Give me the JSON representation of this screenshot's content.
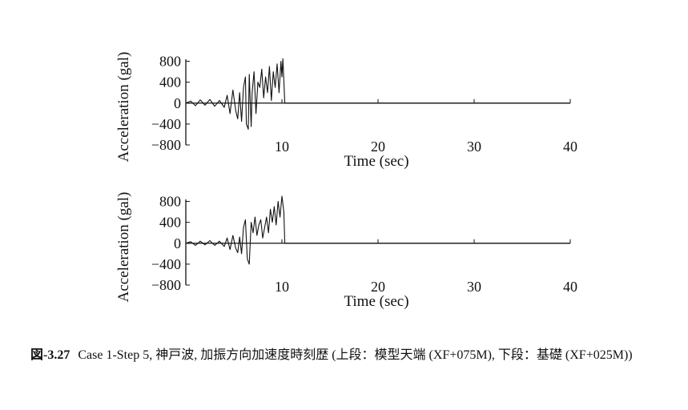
{
  "caption": {
    "figure_number": "図-3.27",
    "text": "Case 1-Step 5, 神戸波, 加振方向加速度時刻歴 (上段：模型天端 (XF+075M), 下段：基礎 (XF+025M))"
  },
  "chart_data": [
    {
      "type": "line",
      "xlabel": "Time (sec)",
      "ylabel": "Acceleration (gal)",
      "xlim": [
        0,
        40
      ],
      "ylim": [
        -800,
        900
      ],
      "xticks": [
        10,
        20,
        30,
        40
      ],
      "yticks": [
        800,
        400,
        0,
        -400,
        -800
      ],
      "ytick_labels": [
        "800",
        "400",
        "0",
        "−400",
        "−800"
      ],
      "grid": false,
      "series": [
        {
          "x": [
            0,
            0.5,
            1.0,
            1.5,
            2.0,
            2.5,
            3.0,
            3.5,
            4.0,
            4.3,
            4.6,
            4.9,
            5.2,
            5.4,
            5.6,
            5.8,
            6.0,
            6.2,
            6.3,
            6.5,
            6.6,
            6.8,
            6.9,
            7.1,
            7.3,
            7.5,
            7.7,
            7.9,
            8.1,
            8.3,
            8.5,
            8.7,
            8.9,
            9.1,
            9.3,
            9.5,
            9.7,
            9.9,
            10.0,
            10.1,
            10.3,
            12,
            20,
            30,
            40
          ],
          "y": [
            0,
            40,
            -50,
            60,
            -40,
            70,
            -60,
            50,
            -80,
            150,
            -200,
            250,
            -150,
            -300,
            200,
            -350,
            300,
            500,
            -400,
            -500,
            550,
            -450,
            200,
            600,
            -200,
            400,
            300,
            650,
            100,
            500,
            200,
            700,
            50,
            600,
            300,
            750,
            200,
            800,
            500,
            850,
            0,
            0,
            0,
            0,
            0
          ]
        }
      ]
    },
    {
      "type": "line",
      "xlabel": "Time (sec)",
      "ylabel": "Acceleration (gal)",
      "xlim": [
        0,
        40
      ],
      "ylim": [
        -800,
        900
      ],
      "xticks": [
        10,
        20,
        30,
        40
      ],
      "yticks": [
        800,
        400,
        0,
        -400,
        -800
      ],
      "ytick_labels": [
        "800",
        "400",
        "0",
        "−400",
        "−800"
      ],
      "grid": false,
      "series": [
        {
          "x": [
            0,
            0.5,
            1.0,
            1.5,
            2.0,
            2.5,
            3.0,
            3.5,
            4.0,
            4.3,
            4.6,
            4.9,
            5.2,
            5.4,
            5.6,
            5.8,
            6.0,
            6.2,
            6.4,
            6.6,
            6.8,
            7.0,
            7.2,
            7.4,
            7.6,
            7.8,
            8.0,
            8.2,
            8.4,
            8.6,
            8.8,
            9.0,
            9.2,
            9.4,
            9.6,
            9.8,
            10.0,
            10.2,
            10.3,
            12,
            20,
            30,
            40
          ],
          "y": [
            0,
            30,
            -40,
            40,
            -30,
            50,
            -40,
            40,
            -60,
            100,
            -120,
            150,
            -100,
            -180,
            120,
            -200,
            300,
            450,
            -300,
            -400,
            400,
            200,
            500,
            150,
            350,
            450,
            100,
            300,
            500,
            200,
            650,
            400,
            700,
            350,
            800,
            500,
            900,
            600,
            0,
            0,
            0,
            0,
            0
          ]
        }
      ]
    }
  ]
}
